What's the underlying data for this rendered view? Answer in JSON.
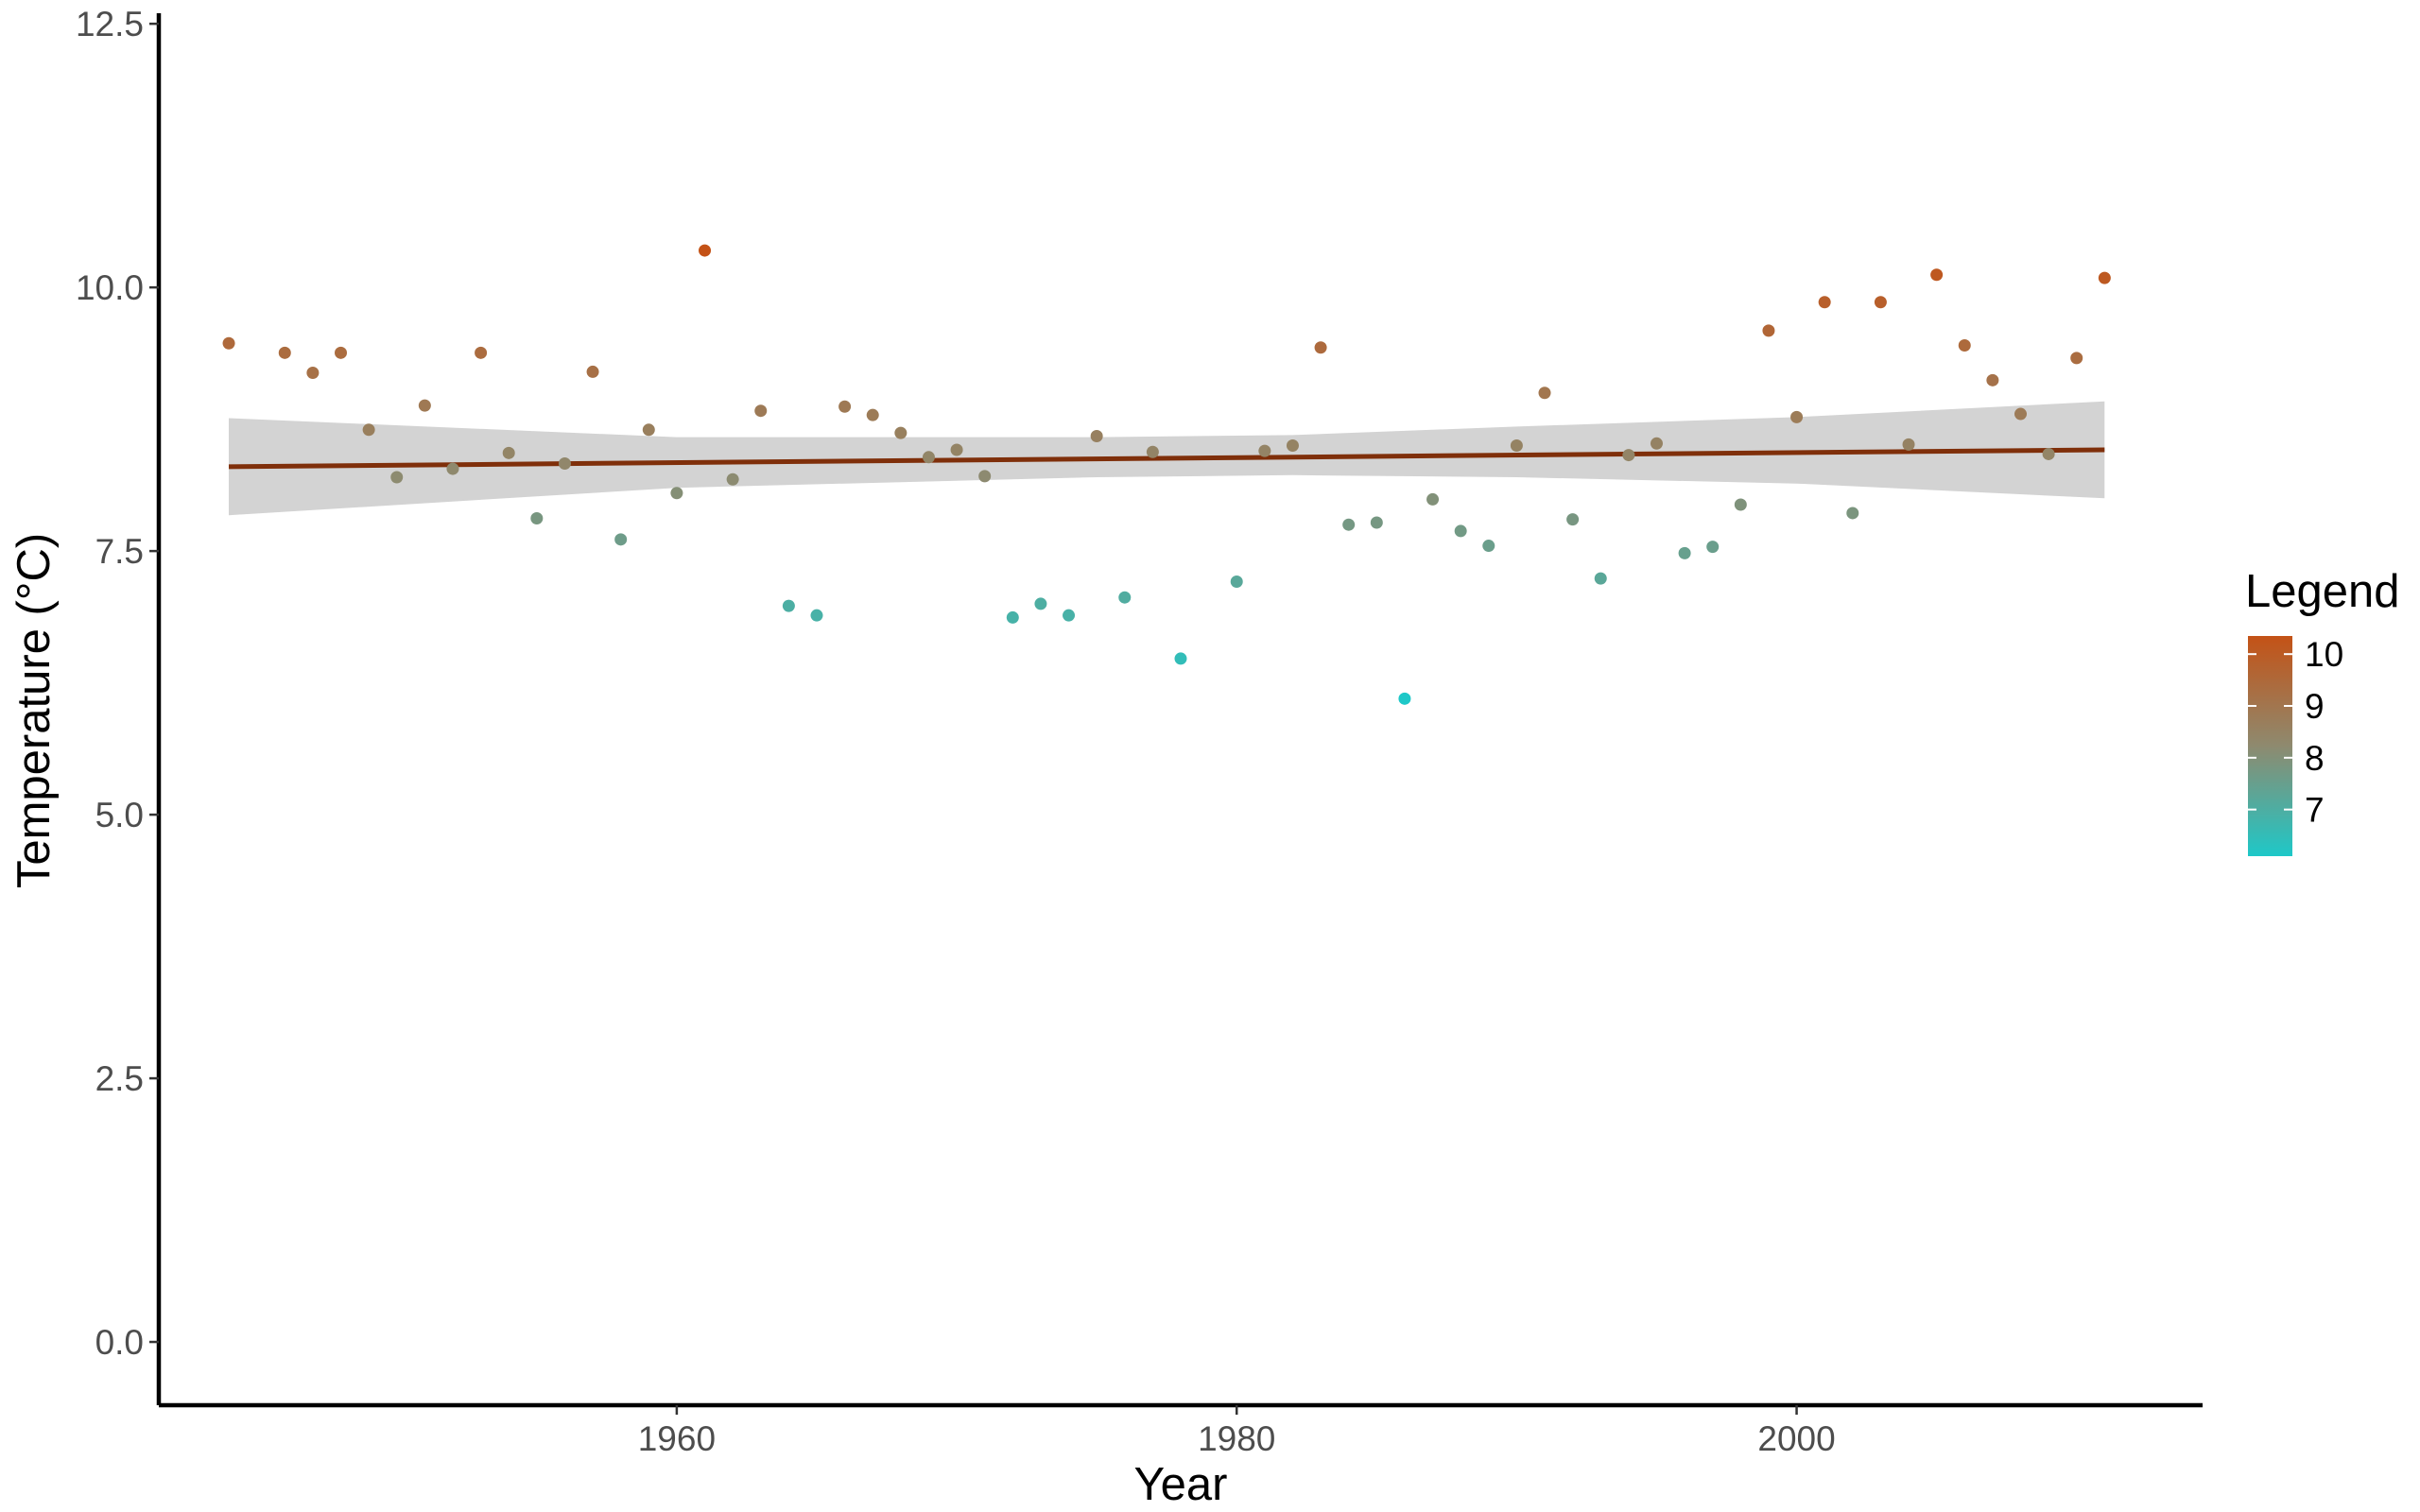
{
  "chart_data": {
    "type": "scatter",
    "xlabel": "Year",
    "ylabel": "Temperature (°C)",
    "xlim": [
      1941.5,
      2014.5
    ],
    "ylim": [
      -0.6,
      12.6
    ],
    "x_ticks": [
      1960,
      1980,
      2000
    ],
    "x_tick_labels": [
      "1960",
      "1980",
      "2000"
    ],
    "y_ticks": [
      0,
      2.5,
      5,
      7.5,
      10,
      12.5
    ],
    "y_tick_labels": [
      "0.0",
      "2.5",
      "5.0",
      "7.5",
      "10.0",
      "12.5"
    ],
    "grid": false,
    "points": [
      {
        "x": 1944,
        "y": 9.47
      },
      {
        "x": 1946,
        "y": 9.38
      },
      {
        "x": 1947,
        "y": 9.19
      },
      {
        "x": 1948,
        "y": 9.38
      },
      {
        "x": 1949,
        "y": 8.65
      },
      {
        "x": 1950,
        "y": 8.2
      },
      {
        "x": 1951,
        "y": 8.88
      },
      {
        "x": 1952,
        "y": 8.28
      },
      {
        "x": 1953,
        "y": 9.38
      },
      {
        "x": 1954,
        "y": 8.43
      },
      {
        "x": 1955,
        "y": 7.81
      },
      {
        "x": 1956,
        "y": 8.33
      },
      {
        "x": 1957,
        "y": 9.2
      },
      {
        "x": 1958,
        "y": 7.61
      },
      {
        "x": 1959,
        "y": 8.65
      },
      {
        "x": 1960,
        "y": 8.05
      },
      {
        "x": 1961,
        "y": 10.35
      },
      {
        "x": 1962,
        "y": 8.18
      },
      {
        "x": 1963,
        "y": 8.83
      },
      {
        "x": 1964,
        "y": 6.98
      },
      {
        "x": 1965,
        "y": 6.89
      },
      {
        "x": 1966,
        "y": 8.87
      },
      {
        "x": 1967,
        "y": 8.79
      },
      {
        "x": 1968,
        "y": 8.62
      },
      {
        "x": 1969,
        "y": 8.39
      },
      {
        "x": 1970,
        "y": 8.46
      },
      {
        "x": 1971,
        "y": 8.21
      },
      {
        "x": 1972,
        "y": 6.87
      },
      {
        "x": 1973,
        "y": 7.0
      },
      {
        "x": 1974,
        "y": 6.89
      },
      {
        "x": 1975,
        "y": 8.59
      },
      {
        "x": 1976,
        "y": 7.06
      },
      {
        "x": 1977,
        "y": 8.44
      },
      {
        "x": 1978,
        "y": 6.48
      },
      {
        "x": 1980,
        "y": 7.21
      },
      {
        "x": 1981,
        "y": 8.45
      },
      {
        "x": 1982,
        "y": 8.5
      },
      {
        "x": 1983,
        "y": 9.43
      },
      {
        "x": 1984,
        "y": 7.75
      },
      {
        "x": 1985,
        "y": 7.77
      },
      {
        "x": 1986,
        "y": 6.1
      },
      {
        "x": 1987,
        "y": 7.99
      },
      {
        "x": 1988,
        "y": 7.69
      },
      {
        "x": 1989,
        "y": 7.55
      },
      {
        "x": 1990,
        "y": 8.5
      },
      {
        "x": 1991,
        "y": 9.0
      },
      {
        "x": 1992,
        "y": 7.8
      },
      {
        "x": 1993,
        "y": 7.24
      },
      {
        "x": 1994,
        "y": 8.41
      },
      {
        "x": 1995,
        "y": 8.52
      },
      {
        "x": 1996,
        "y": 7.48
      },
      {
        "x": 1997,
        "y": 7.54
      },
      {
        "x": 1998,
        "y": 7.94
      },
      {
        "x": 1999,
        "y": 9.59
      },
      {
        "x": 2000,
        "y": 8.77
      },
      {
        "x": 2001,
        "y": 9.86
      },
      {
        "x": 2002,
        "y": 7.86
      },
      {
        "x": 2003,
        "y": 9.86
      },
      {
        "x": 2004,
        "y": 8.51
      },
      {
        "x": 2005,
        "y": 10.12
      },
      {
        "x": 2006,
        "y": 9.45
      },
      {
        "x": 2007,
        "y": 9.12
      },
      {
        "x": 2008,
        "y": 8.8
      },
      {
        "x": 2009,
        "y": 8.42
      },
      {
        "x": 2010,
        "y": 9.33
      },
      {
        "x": 2011,
        "y": 10.09
      }
    ],
    "trend_line": {
      "x": [
        1944,
        2011
      ],
      "y": [
        8.3,
        8.46
      ],
      "color": "#7f2f0a"
    },
    "confidence_band": {
      "x": [
        1944,
        1960,
        1975,
        1982,
        1990,
        2000,
        2011
      ],
      "lower": [
        7.84,
        8.1,
        8.2,
        8.22,
        8.2,
        8.14,
        8.0
      ],
      "upper": [
        8.76,
        8.58,
        8.58,
        8.6,
        8.68,
        8.77,
        8.92
      ],
      "color": "#d3d3d3"
    },
    "color_scale": {
      "low": 6.1,
      "high": 10.35,
      "low_color": "#1ec8c8",
      "mid_color": "#8e8a6f",
      "high_color": "#c45216"
    },
    "legend": {
      "title": "Legend",
      "ticks": [
        10,
        9,
        8,
        7
      ],
      "tick_labels": [
        "10",
        "9",
        "8",
        "7"
      ],
      "position": "right"
    }
  }
}
